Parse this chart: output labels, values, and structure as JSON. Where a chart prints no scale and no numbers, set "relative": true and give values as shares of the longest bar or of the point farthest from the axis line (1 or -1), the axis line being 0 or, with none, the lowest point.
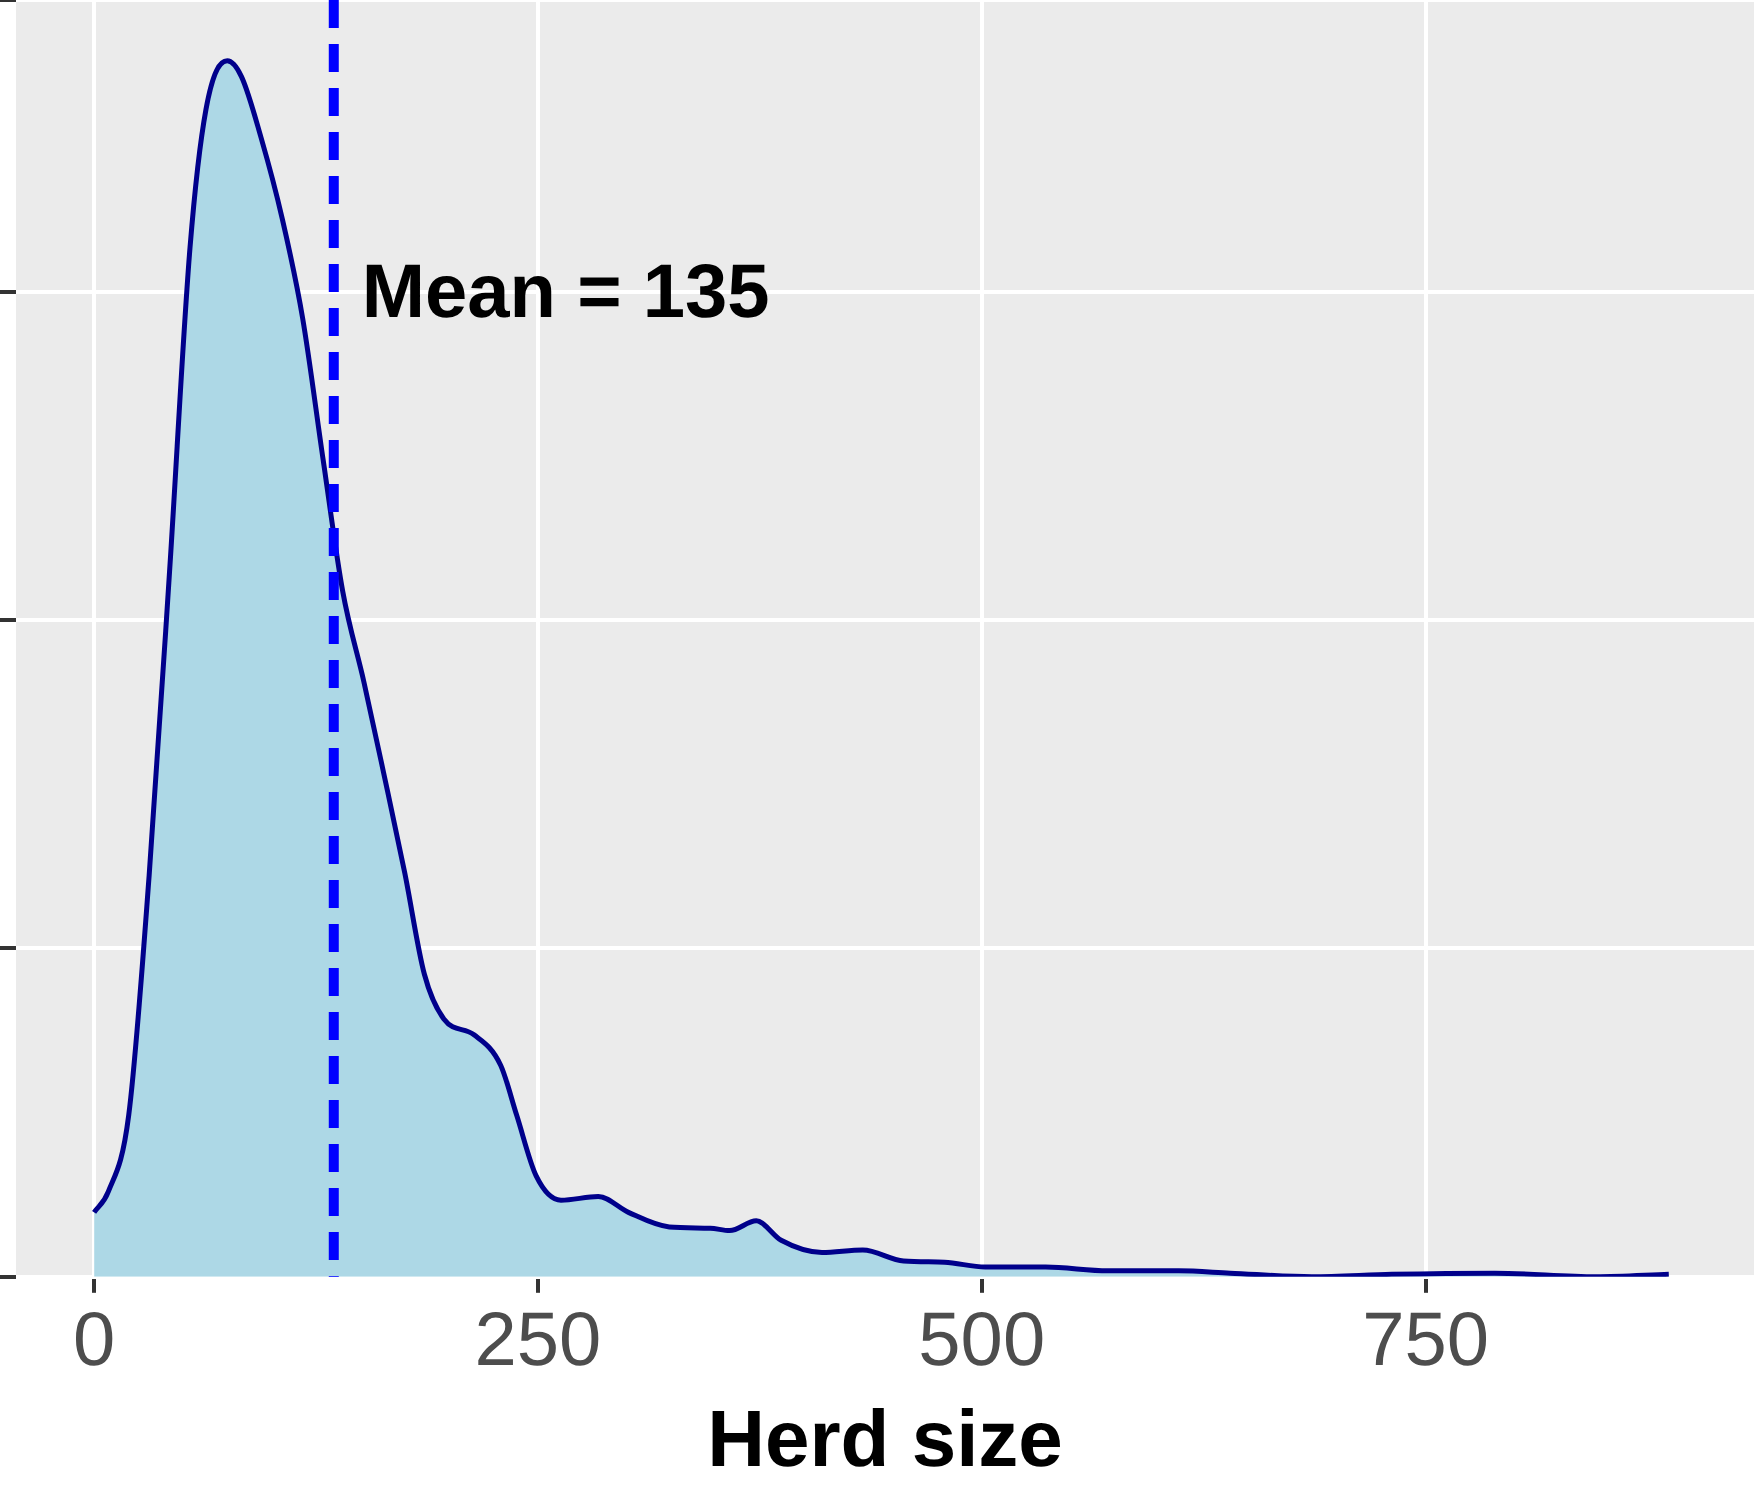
{
  "chart_data": {
    "type": "area",
    "xlabel": "Herd size",
    "relative": true,
    "xlim": [
      -44,
      935
    ],
    "xticks": [
      0,
      250,
      500,
      750
    ],
    "grid": true,
    "tick_labels": "x",
    "marker": "none",
    "series": [
      {
        "color": "#add8e6",
        "x": [
          0,
          8,
          19.5,
          31,
          42.5,
          54,
          63,
          75,
          83,
          94,
          106,
          117.5,
          129,
          140,
          152,
          163,
          175,
          186,
          197,
          214,
          229,
          238,
          249,
          263,
          284,
          301,
          324,
          347,
          358,
          373,
          387,
          410,
          433,
          456,
          479,
          502,
          536,
          571,
          611,
          640,
          686,
          731,
          789,
          846,
          887
        ],
        "values": [
          0.053,
          0.07,
          0.133,
          0.33,
          0.58,
          0.846,
          0.96,
          1.0,
          0.987,
          0.937,
          0.87,
          0.788,
          0.672,
          0.564,
          0.489,
          0.415,
          0.332,
          0.249,
          0.212,
          0.199,
          0.174,
          0.133,
          0.083,
          0.063,
          0.066,
          0.053,
          0.041,
          0.04,
          0.038,
          0.046,
          0.03,
          0.02,
          0.022,
          0.013,
          0.012,
          0.008,
          0.008,
          0.005,
          0.005,
          0.003,
          0,
          0.002,
          0.003,
          0,
          0.002
        ]
      }
    ],
    "ref_lines": [
      {
        "axis": "x",
        "value": 135,
        "label": "Mean = 135",
        "color": "#0000ff",
        "line_style": "dashed"
      }
    ]
  }
}
